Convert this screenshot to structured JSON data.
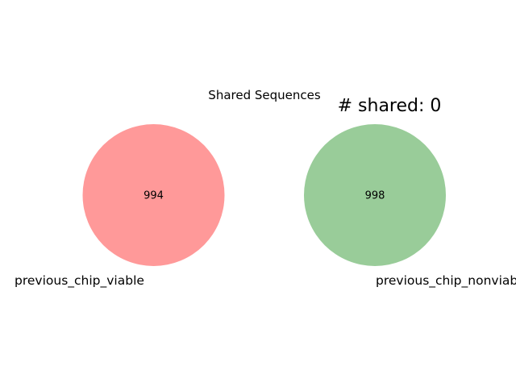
{
  "title": "Shared Sequences",
  "subtitle": "# shared: 0",
  "sets": [
    {
      "label": "previous_chip_viable",
      "count": "994",
      "color": "#ff9999"
    },
    {
      "label": "previous_chip_nonviable",
      "count": "998",
      "color": "#99cc99"
    }
  ],
  "shared_count": 0
}
